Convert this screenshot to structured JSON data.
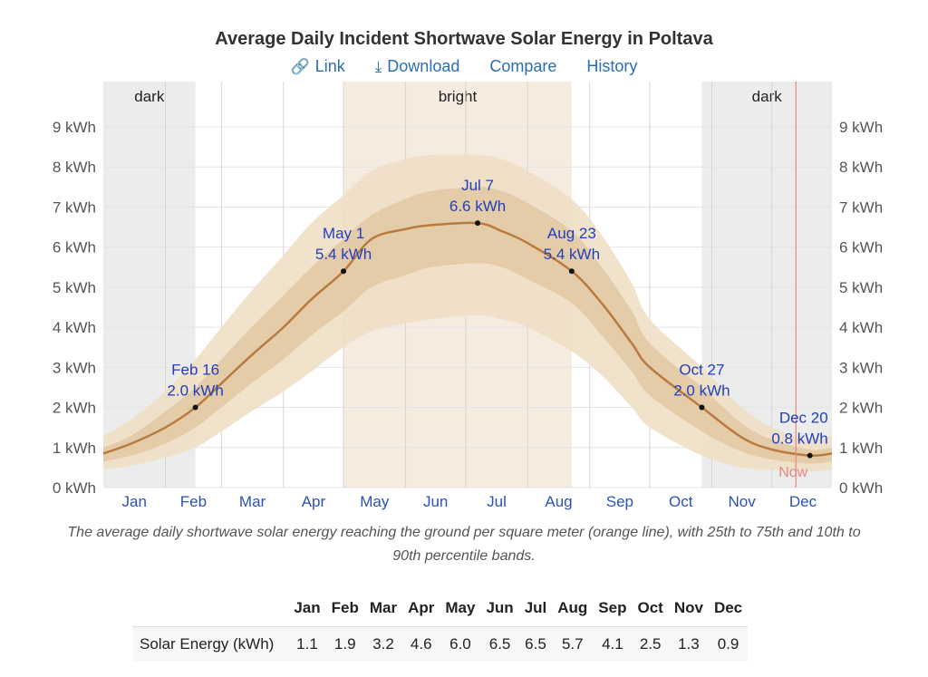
{
  "page": {
    "title": "Average Daily Incident Shortwave Solar Energy in Poltava",
    "toolbar": {
      "link": "Link",
      "download": "Download",
      "compare": "Compare",
      "history": "History"
    },
    "caption": "The average daily shortwave solar energy reaching the ground per square meter (orange line), with 25th to 75th and 10th to 90th percentile bands."
  },
  "colors": {
    "line": "#b97a3e",
    "band_inner": "#e3caa6",
    "band_outer": "#efdfc7",
    "dark_season": "#ececec",
    "bright_season": "#f6ebdf",
    "now_line": "#e8867f",
    "label": "#1f3fbf",
    "axis_text": "#555555",
    "link": "#2a6fb5"
  },
  "chart_data": {
    "type": "line",
    "title": "Average Daily Incident Shortwave Solar Energy in Poltava",
    "x_unit": "day of year",
    "xlim": [
      1,
      365
    ],
    "ylim": [
      0,
      9
    ],
    "y_ticks": [
      {
        "value": 0,
        "label": "0 kWh"
      },
      {
        "value": 1,
        "label": "1 kWh"
      },
      {
        "value": 2,
        "label": "2 kWh"
      },
      {
        "value": 3,
        "label": "3 kWh"
      },
      {
        "value": 4,
        "label": "4 kWh"
      },
      {
        "value": 5,
        "label": "5 kWh"
      },
      {
        "value": 6,
        "label": "6 kWh"
      },
      {
        "value": 7,
        "label": "7 kWh"
      },
      {
        "value": 8,
        "label": "8 kWh"
      },
      {
        "value": 9,
        "label": "9 kWh"
      }
    ],
    "months": [
      "Jan",
      "Feb",
      "Mar",
      "Apr",
      "May",
      "Jun",
      "Jul",
      "Aug",
      "Sep",
      "Oct",
      "Nov",
      "Dec"
    ],
    "month_starts": [
      1,
      32,
      60,
      91,
      121,
      152,
      182,
      213,
      244,
      274,
      305,
      335
    ],
    "seasons": [
      {
        "label": "dark",
        "start": 1,
        "end": 47,
        "kind": "dark"
      },
      {
        "label": "bright",
        "start": 121,
        "end": 235,
        "kind": "bright"
      },
      {
        "label": "dark",
        "start": 300,
        "end": 365,
        "kind": "dark"
      }
    ],
    "now": {
      "label": "Now",
      "day": 347
    },
    "series": [
      {
        "name": "average",
        "x": [
          1,
          15,
          32,
          47,
          60,
          75,
          91,
          105,
          121,
          135,
          152,
          165,
          188,
          200,
          213,
          235,
          250,
          265,
          274,
          300,
          320,
          335,
          354,
          365
        ],
        "y": [
          0.85,
          1.1,
          1.5,
          2.0,
          2.6,
          3.3,
          4.0,
          4.7,
          5.4,
          6.2,
          6.45,
          6.55,
          6.6,
          6.4,
          6.1,
          5.4,
          4.6,
          3.6,
          3.0,
          2.0,
          1.25,
          0.95,
          0.8,
          0.85
        ]
      },
      {
        "name": "p25",
        "x": [
          1,
          15,
          32,
          47,
          60,
          75,
          91,
          105,
          121,
          135,
          152,
          165,
          188,
          200,
          213,
          235,
          250,
          265,
          274,
          300,
          320,
          335,
          354,
          365
        ],
        "y": [
          0.65,
          0.8,
          1.1,
          1.5,
          2.0,
          2.6,
          3.2,
          3.8,
          4.4,
          5.0,
          5.3,
          5.5,
          5.6,
          5.5,
          5.2,
          4.6,
          3.8,
          2.9,
          2.3,
          1.4,
          0.9,
          0.7,
          0.6,
          0.65
        ]
      },
      {
        "name": "p75",
        "x": [
          1,
          15,
          32,
          47,
          60,
          75,
          91,
          105,
          121,
          135,
          152,
          165,
          188,
          200,
          213,
          235,
          250,
          265,
          274,
          300,
          320,
          335,
          354,
          365
        ],
        "y": [
          1.0,
          1.3,
          1.9,
          2.5,
          3.2,
          4.0,
          4.8,
          5.5,
          6.2,
          6.8,
          7.2,
          7.4,
          7.5,
          7.4,
          7.1,
          6.4,
          5.5,
          4.4,
          3.6,
          2.5,
          1.6,
          1.2,
          0.95,
          1.0
        ]
      },
      {
        "name": "p10",
        "x": [
          1,
          15,
          32,
          47,
          60,
          75,
          91,
          105,
          121,
          135,
          152,
          165,
          188,
          200,
          213,
          235,
          250,
          265,
          274,
          300,
          320,
          335,
          354,
          365
        ],
        "y": [
          0.45,
          0.55,
          0.75,
          1.0,
          1.4,
          1.9,
          2.4,
          2.9,
          3.5,
          3.9,
          4.1,
          4.2,
          4.3,
          4.2,
          4.0,
          3.4,
          2.8,
          2.0,
          1.5,
          0.8,
          0.5,
          0.45,
          0.4,
          0.45
        ]
      },
      {
        "name": "p90",
        "x": [
          1,
          15,
          32,
          47,
          60,
          75,
          91,
          105,
          121,
          135,
          152,
          165,
          188,
          200,
          213,
          235,
          250,
          265,
          274,
          300,
          320,
          335,
          354,
          365
        ],
        "y": [
          1.3,
          1.7,
          2.4,
          3.2,
          4.0,
          4.9,
          5.8,
          6.6,
          7.3,
          7.9,
          8.2,
          8.3,
          8.3,
          8.2,
          7.9,
          7.2,
          6.3,
          5.1,
          4.2,
          3.0,
          2.0,
          1.5,
          1.2,
          1.3
        ]
      }
    ],
    "annotations": [
      {
        "day": 47,
        "value": 2.0,
        "date": "Feb 16",
        "text": "2.0 kWh",
        "anchor": "middle"
      },
      {
        "day": 121,
        "value": 5.4,
        "date": "May 1",
        "text": "5.4 kWh",
        "anchor": "middle"
      },
      {
        "day": 188,
        "value": 6.6,
        "date": "Jul 7",
        "text": "6.6 kWh",
        "anchor": "middle"
      },
      {
        "day": 235,
        "value": 5.4,
        "date": "Aug 23",
        "text": "5.4 kWh",
        "anchor": "middle"
      },
      {
        "day": 300,
        "value": 2.0,
        "date": "Oct 27",
        "text": "2.0 kWh",
        "anchor": "middle"
      },
      {
        "day": 354,
        "value": 0.8,
        "date": "Dec 20",
        "text": "0.8 kWh",
        "anchor": "end"
      }
    ]
  },
  "table": {
    "headers": [
      "Jan",
      "Feb",
      "Mar",
      "Apr",
      "May",
      "Jun",
      "Jul",
      "Aug",
      "Sep",
      "Oct",
      "Nov",
      "Dec"
    ],
    "row_label": "Solar Energy (kWh)",
    "values": [
      "1.1",
      "1.9",
      "3.2",
      "4.6",
      "6.0",
      "6.5",
      "6.5",
      "5.7",
      "4.1",
      "2.5",
      "1.3",
      "0.9"
    ]
  }
}
